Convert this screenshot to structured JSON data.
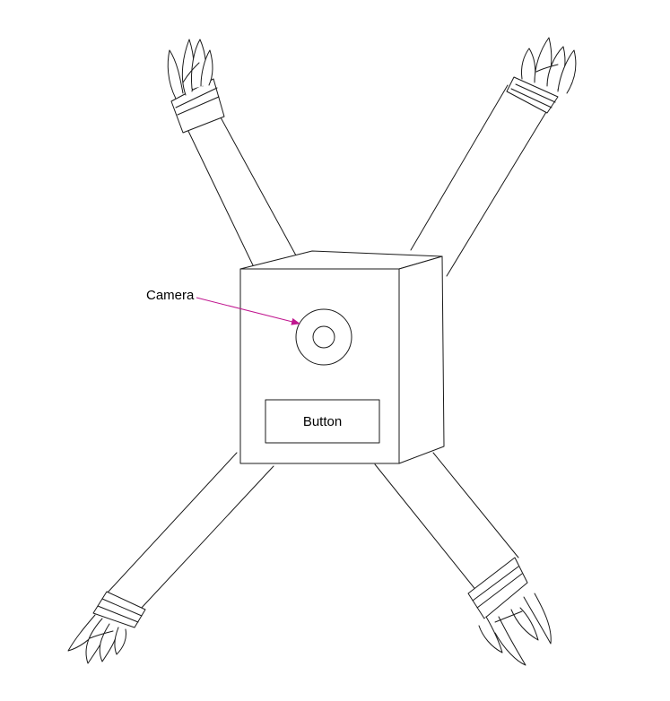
{
  "labels": {
    "camera": "Camera",
    "button": "Button"
  },
  "colors": {
    "outline": "#1a1a1a",
    "callout_arrow": "#c0168f",
    "background": "#ffffff"
  },
  "icons": {
    "legs": "strap-with-claw-foot",
    "body": "box",
    "camera": "lens-circle"
  }
}
